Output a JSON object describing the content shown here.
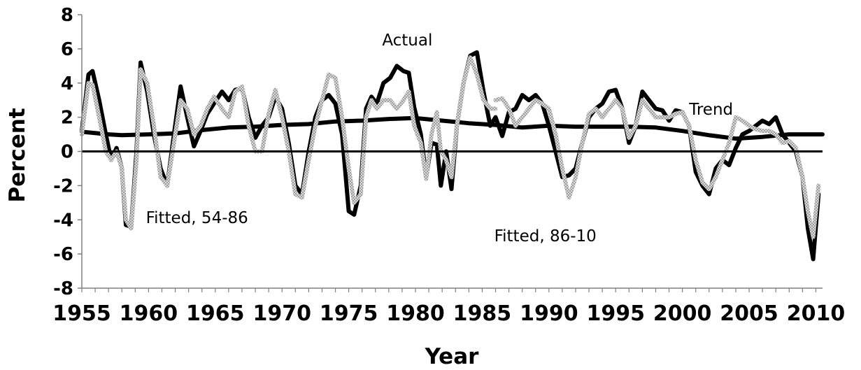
{
  "chart_data": {
    "type": "line",
    "title": "",
    "xlabel": "Year",
    "ylabel": "Percent",
    "xlim": [
      1955,
      2010.5
    ],
    "ylim": [
      -8,
      8
    ],
    "x_ticks": [
      "1955",
      "1960",
      "1965",
      "1970",
      "1975",
      "1980",
      "1985",
      "1990",
      "1995",
      "2000",
      "2005",
      "2010"
    ],
    "y_ticks": [
      "8",
      "6",
      "4",
      "2",
      "0",
      "-2",
      "-4",
      "-6",
      "-8"
    ],
    "grid": false,
    "legend": "none",
    "annotations": [
      "Actual",
      "Trend",
      "Fitted, 54-86",
      "Fitted, 86-10"
    ],
    "series": [
      {
        "name": "Trend",
        "color": "#000000",
        "x": [
          1955,
          1957,
          1958,
          1960,
          1962,
          1964,
          1966,
          1968,
          1970,
          1972,
          1974,
          1976,
          1978,
          1980,
          1982,
          1984,
          1986,
          1988,
          1990,
          1992,
          1994,
          1996,
          1998,
          2000,
          2002,
          2004,
          2006,
          2008,
          2010.5
        ],
        "y": [
          1.15,
          1.0,
          0.95,
          1.0,
          1.05,
          1.25,
          1.4,
          1.45,
          1.55,
          1.6,
          1.75,
          1.8,
          1.9,
          1.95,
          1.8,
          1.65,
          1.55,
          1.4,
          1.5,
          1.45,
          1.45,
          1.45,
          1.4,
          1.2,
          0.95,
          0.75,
          0.85,
          1.0,
          1.0
        ]
      },
      {
        "name": "Actual",
        "color": "#000000",
        "x": [
          1955,
          1955.5,
          1955.8,
          1956.3,
          1956.8,
          1957.2,
          1957.6,
          1958.0,
          1958.3,
          1958.7,
          1959.1,
          1959.4,
          1959.9,
          1960.4,
          1960.9,
          1961.4,
          1961.9,
          1962.4,
          1962.9,
          1963.4,
          1963.9,
          1964.4,
          1964.9,
          1965.5,
          1966.0,
          1966.5,
          1967.0,
          1967.5,
          1968.0,
          1968.5,
          1969.0,
          1969.5,
          1970.0,
          1970.5,
          1971.0,
          1971.5,
          1972.0,
          1972.5,
          1973.0,
          1973.5,
          1974.0,
          1974.5,
          1975.0,
          1975.4,
          1975.9,
          1976.3,
          1976.7,
          1977.1,
          1977.6,
          1978.1,
          1978.6,
          1979.1,
          1979.5,
          1979.9,
          1980.4,
          1980.8,
          1981.2,
          1981.6,
          1981.9,
          1982.3,
          1982.7,
          1983.1,
          1983.6,
          1984.1,
          1984.6,
          1985.1,
          1985.6,
          1986.0,
          1986.5,
          1987.0,
          1987.5,
          1988.0,
          1988.5,
          1989.0,
          1989.5,
          1990.0,
          1990.5,
          1991.0,
          1991.5,
          1992.0,
          1992.5,
          1993.0,
          1993.5,
          1994.0,
          1994.5,
          1995.0,
          1995.5,
          1996.0,
          1996.5,
          1997.0,
          1997.5,
          1998.0,
          1998.5,
          1999.0,
          1999.5,
          2000.0,
          2000.5,
          2001.0,
          2001.5,
          2002.0,
          2002.5,
          2003.0,
          2003.5,
          2004.0,
          2004.5,
          2005.0,
          2005.5,
          2006.0,
          2006.5,
          2007.0,
          2007.5,
          2008.0,
          2008.5,
          2009.0,
          2009.4,
          2009.8,
          2010.2
        ],
        "y": [
          1.2,
          4.5,
          4.7,
          3.0,
          1.0,
          -0.5,
          0.2,
          -1.0,
          -4.3,
          -4.4,
          0.0,
          5.2,
          3.5,
          1.0,
          -1.0,
          -2.0,
          1.0,
          3.8,
          2.0,
          0.3,
          1.2,
          2.2,
          2.8,
          3.5,
          3.0,
          3.6,
          3.7,
          2.0,
          0.8,
          1.5,
          2.0,
          3.2,
          2.5,
          0.5,
          -2.0,
          -2.5,
          0.0,
          2.0,
          3.0,
          3.3,
          2.8,
          1.0,
          -3.5,
          -3.7,
          -2.0,
          2.5,
          3.2,
          2.8,
          4.0,
          4.3,
          5.0,
          4.7,
          4.6,
          2.6,
          1.0,
          -1.5,
          0.5,
          0.4,
          -2.0,
          0.0,
          -2.2,
          1.5,
          4.0,
          5.6,
          5.8,
          3.5,
          1.5,
          2.0,
          0.9,
          2.3,
          2.5,
          3.3,
          3.0,
          3.3,
          2.8,
          1.5,
          0.0,
          -1.5,
          -1.4,
          -1.0,
          0.5,
          2.0,
          2.5,
          2.8,
          3.5,
          3.6,
          2.5,
          0.5,
          1.5,
          3.5,
          3.0,
          2.5,
          2.4,
          1.8,
          2.4,
          2.3,
          1.5,
          -1.2,
          -2.0,
          -2.5,
          -1.0,
          -0.5,
          -0.8,
          0.2,
          1.0,
          1.2,
          1.5,
          1.8,
          1.6,
          2.0,
          1.0,
          0.5,
          0.0,
          -1.5,
          -4.5,
          -6.3,
          -2.5
        ]
      },
      {
        "name": "Fitted, 54-86",
        "color": "#999999",
        "x": [
          1955,
          1955.5,
          1955.8,
          1956.3,
          1956.8,
          1957.2,
          1957.6,
          1958.0,
          1958.3,
          1958.7,
          1959.1,
          1959.4,
          1959.9,
          1960.4,
          1960.9,
          1961.4,
          1961.9,
          1962.4,
          1962.9,
          1963.4,
          1963.9,
          1964.4,
          1964.9,
          1965.5,
          1966.0,
          1966.5,
          1967.0,
          1967.5,
          1968.0,
          1968.5,
          1969.0,
          1969.5,
          1970.0,
          1970.5,
          1971.0,
          1971.5,
          1972.0,
          1972.5,
          1973.0,
          1973.5,
          1974.0,
          1974.5,
          1975.0,
          1975.4,
          1975.9,
          1976.3,
          1976.7,
          1977.1,
          1977.6,
          1978.1,
          1978.6,
          1979.1,
          1979.5,
          1979.9,
          1980.4,
          1980.8,
          1981.2,
          1981.6,
          1981.9,
          1982.3,
          1982.7,
          1983.1,
          1983.6,
          1984.1,
          1984.6,
          1985.1,
          1985.6,
          1986.0
        ],
        "y": [
          1.0,
          4.0,
          3.9,
          2.0,
          0.0,
          -0.5,
          0.0,
          -1.0,
          -4.0,
          -4.5,
          -0.5,
          4.8,
          4.0,
          1.5,
          -1.5,
          -2.0,
          0.5,
          3.0,
          2.5,
          1.0,
          1.5,
          2.5,
          3.2,
          2.5,
          2.0,
          3.5,
          3.8,
          1.5,
          0.0,
          0.0,
          2.2,
          3.6,
          2.0,
          0.0,
          -2.5,
          -2.7,
          -0.5,
          1.5,
          3.0,
          4.5,
          4.3,
          2.0,
          -1.0,
          -3.0,
          -2.5,
          2.0,
          3.0,
          2.5,
          3.0,
          3.0,
          2.5,
          3.0,
          3.5,
          1.5,
          0.5,
          -1.6,
          1.0,
          2.3,
          0.0,
          -0.5,
          -1.5,
          1.5,
          4.0,
          5.5,
          4.5,
          3.0,
          2.5,
          2.5
        ]
      },
      {
        "name": "Fitted, 86-10",
        "color": "#999999",
        "x": [
          1986.0,
          1986.5,
          1987.0,
          1987.5,
          1988.0,
          1988.5,
          1989.0,
          1989.5,
          1990.0,
          1990.5,
          1991.0,
          1991.5,
          1992.0,
          1992.5,
          1993.0,
          1993.5,
          1994.0,
          1994.5,
          1995.0,
          1995.5,
          1996.0,
          1996.5,
          1997.0,
          1997.5,
          1998.0,
          1998.5,
          1999.0,
          1999.5,
          2000.0,
          2000.5,
          2001.0,
          2001.5,
          2002.0,
          2002.5,
          2003.0,
          2003.5,
          2004.0,
          2004.5,
          2005.0,
          2005.5,
          2006.0,
          2006.5,
          2007.0,
          2007.5,
          2008.0,
          2008.5,
          2009.0,
          2009.4,
          2009.8,
          2010.2
        ],
        "y": [
          3.0,
          3.1,
          2.5,
          1.5,
          2.0,
          2.5,
          3.0,
          2.8,
          2.5,
          1.0,
          -1.0,
          -2.7,
          -1.5,
          0.5,
          2.2,
          2.5,
          2.0,
          2.5,
          3.0,
          2.5,
          0.8,
          1.5,
          3.0,
          2.5,
          2.0,
          2.0,
          2.0,
          2.2,
          2.3,
          1.5,
          -0.5,
          -1.8,
          -2.2,
          -1.5,
          -0.5,
          0.5,
          2.0,
          1.8,
          1.5,
          1.3,
          1.2,
          1.2,
          1.0,
          0.5,
          0.6,
          0.2,
          -1.5,
          -3.5,
          -5.0,
          -2.0
        ]
      }
    ]
  }
}
